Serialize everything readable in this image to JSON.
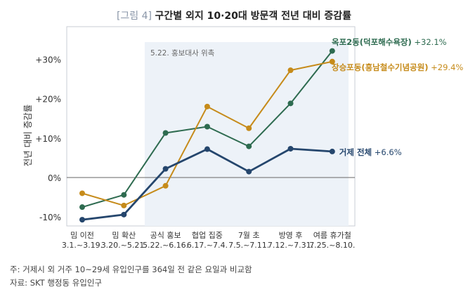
{
  "title_tag": "[그림 4]",
  "title_text": "구간별 외지 10·20대 방문객 전년 대비 증감률",
  "footnotes": [
    "주: 거제시 외 거주 10~29세 유입인구를 364일 전 같은 요일과 비교함",
    "자료: SKT 행정동 유입인구"
  ],
  "chart_data": {
    "type": "line",
    "ylabel": "전년 대비 증감률",
    "ylim": [
      -12,
      35
    ],
    "yticks": [
      -10,
      0,
      10,
      20,
      30
    ],
    "ytick_labels": [
      "-10%",
      "0%",
      "+10%",
      "+20%",
      "+30%"
    ],
    "grid": "horizontal",
    "categories": [
      {
        "label": "밈 이전",
        "range": "3.1.~3.19."
      },
      {
        "label": "밈 확산",
        "range": "3.20.~5.21."
      },
      {
        "label": "공식 홍보",
        "range": "5.22.~6.16."
      },
      {
        "label": "협업 집중",
        "range": "6.17.~7.4."
      },
      {
        "label": "7월 초",
        "range": "7.5.~7.11."
      },
      {
        "label": "방영 후",
        "range": "7.12.~7.31."
      },
      {
        "label": "여름 휴가철",
        "range": "7.25.~8.10."
      }
    ],
    "shaded_region": {
      "from_index": 1.5,
      "to_index": 6.5,
      "label": "5.22. 홍보대사 위촉",
      "color": "#edf2f8"
    },
    "series": [
      {
        "name": "옥포2동(덕포해수욕장)",
        "end_label": "+32.1%",
        "color": "#2e6b50",
        "values": [
          -7.5,
          -4.4,
          11.3,
          12.9,
          7.9,
          18.8,
          32.1
        ]
      },
      {
        "name": "장승포동(흥남철수기념공원)",
        "end_label": "+29.4%",
        "color": "#c68b1a",
        "values": [
          -4.0,
          -7.1,
          -2.1,
          18.0,
          12.5,
          27.2,
          29.4
        ]
      },
      {
        "name": "거제 전체",
        "end_label": "+6.6%",
        "color": "#25466d",
        "values": [
          -10.7,
          -9.4,
          2.2,
          7.2,
          1.5,
          7.3,
          6.6
        ]
      }
    ]
  }
}
